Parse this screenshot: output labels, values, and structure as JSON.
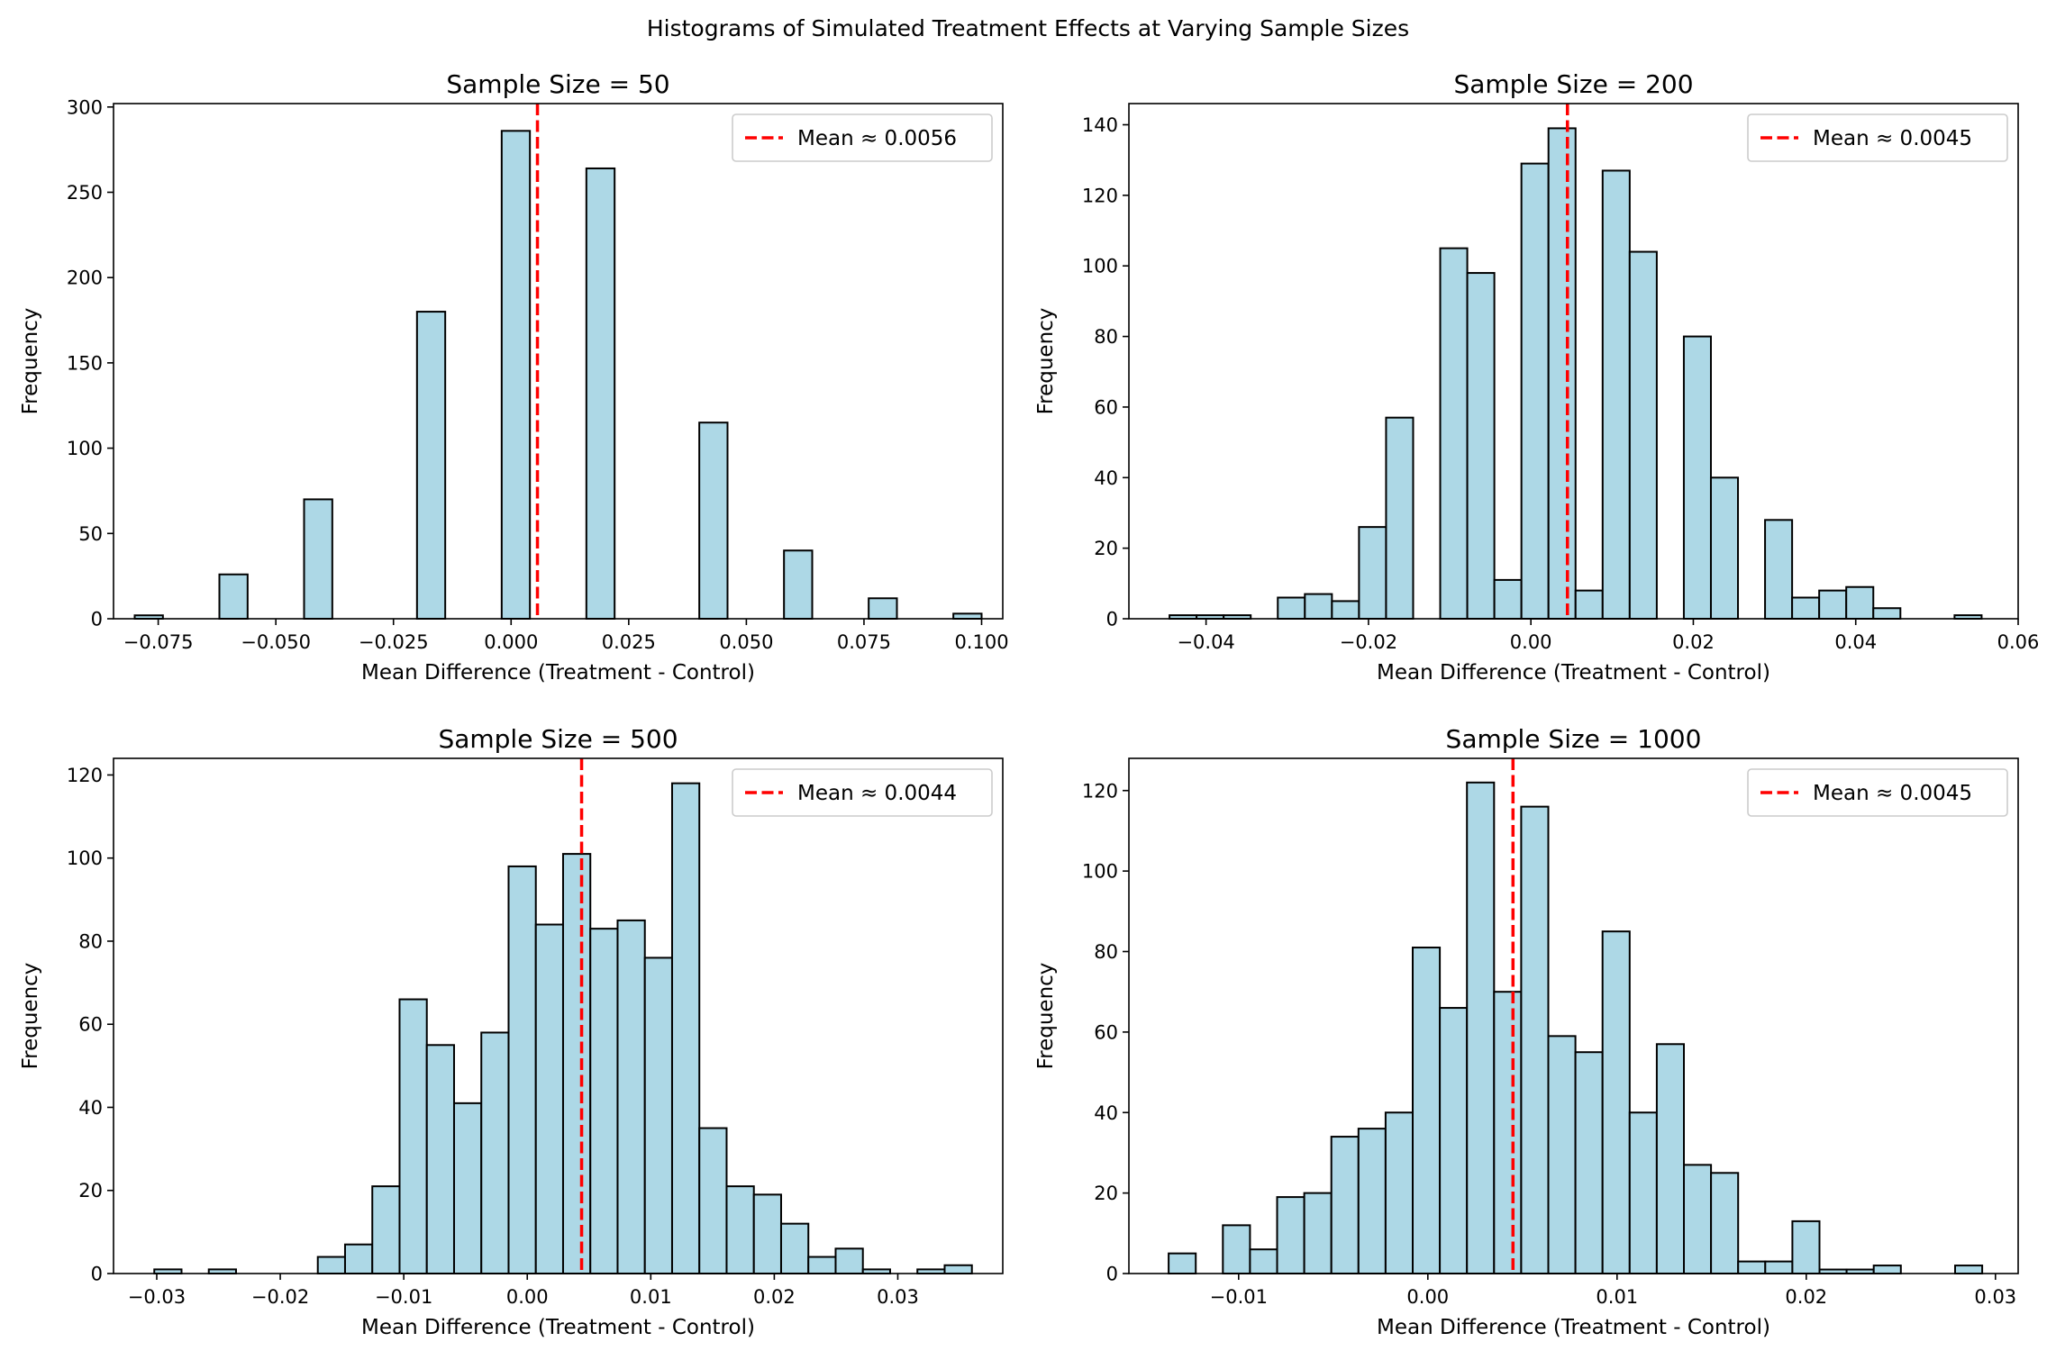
{
  "figure": {
    "title": "Histograms of Simulated Treatment Effects at Varying Sample Sizes",
    "bar_fill": "#add8e6",
    "bar_edge": "#000000",
    "mean_line_color": "#ff0000"
  },
  "chart_data": [
    {
      "type": "bar",
      "title": "Sample Size = 50",
      "xlabel": "Mean Difference (Treatment - Control)",
      "ylabel": "Frequency",
      "xlim": [
        -0.0845,
        0.1045
      ],
      "ylim": [
        0,
        302
      ],
      "xticks": [
        -0.075,
        -0.05,
        -0.025,
        0.0,
        0.025,
        0.05,
        0.075,
        0.1
      ],
      "xtick_labels": [
        "−0.075",
        "−0.050",
        "−0.025",
        "0.000",
        "0.025",
        "0.050",
        "0.075",
        "0.100"
      ],
      "yticks": [
        0,
        50,
        100,
        150,
        200,
        250,
        300
      ],
      "ytick_labels": [
        "0",
        "50",
        "100",
        "150",
        "200",
        "250",
        "300"
      ],
      "bin_start": -0.08,
      "bin_width": 0.006,
      "values": [
        2,
        0,
        0,
        26,
        0,
        0,
        70,
        0,
        0,
        0,
        180,
        0,
        0,
        286,
        0,
        0,
        264,
        0,
        0,
        0,
        115,
        0,
        0,
        40,
        0,
        0,
        12,
        0,
        0,
        3
      ],
      "mean": 0.0056,
      "legend_label": "Mean ≈ 0.0056",
      "legend_position": "upper right"
    },
    {
      "type": "bar",
      "title": "Sample Size = 200",
      "xlabel": "Mean Difference (Treatment - Control)",
      "ylabel": "Frequency",
      "xlim": [
        -0.0495,
        0.06
      ],
      "ylim": [
        0,
        146
      ],
      "xticks": [
        -0.04,
        -0.02,
        0.0,
        0.02,
        0.04,
        0.06
      ],
      "xtick_labels": [
        "−0.04",
        "−0.02",
        "0.00",
        "0.02",
        "0.04",
        "0.06"
      ],
      "yticks": [
        0,
        20,
        40,
        60,
        80,
        100,
        120,
        140
      ],
      "ytick_labels": [
        "0",
        "20",
        "40",
        "60",
        "80",
        "100",
        "120",
        "140"
      ],
      "bin_start": -0.0445,
      "bin_width": 0.0033333,
      "values": [
        1,
        1,
        1,
        0,
        6,
        7,
        5,
        26,
        57,
        0,
        105,
        98,
        11,
        129,
        139,
        8,
        127,
        104,
        0,
        80,
        40,
        0,
        28,
        6,
        8,
        9,
        3,
        0,
        0,
        1
      ],
      "mean": 0.0045,
      "legend_label": "Mean ≈ 0.0045",
      "legend_position": "upper right"
    },
    {
      "type": "bar",
      "title": "Sample Size = 500",
      "xlabel": "Mean Difference (Treatment - Control)",
      "ylabel": "Frequency",
      "xlim": [
        -0.0335,
        0.0385
      ],
      "ylim": [
        0,
        124
      ],
      "xticks": [
        -0.03,
        -0.02,
        -0.01,
        0.0,
        0.01,
        0.02,
        0.03
      ],
      "xtick_labels": [
        "−0.03",
        "−0.02",
        "−0.01",
        "0.00",
        "0.01",
        "0.02",
        "0.03"
      ],
      "yticks": [
        0,
        20,
        40,
        60,
        80,
        100,
        120
      ],
      "ytick_labels": [
        "0",
        "20",
        "40",
        "60",
        "80",
        "100",
        "120"
      ],
      "bin_start": -0.0302,
      "bin_width": 0.00220667,
      "values": [
        1,
        0,
        1,
        0,
        0,
        0,
        4,
        7,
        21,
        66,
        55,
        41,
        58,
        98,
        84,
        101,
        83,
        85,
        76,
        118,
        35,
        21,
        19,
        12,
        4,
        6,
        1,
        0,
        1,
        2
      ],
      "mean": 0.0044,
      "legend_label": "Mean ≈ 0.0044",
      "legend_position": "upper right"
    },
    {
      "type": "bar",
      "title": "Sample Size = 1000",
      "xlabel": "Mean Difference (Treatment - Control)",
      "ylabel": "Frequency",
      "xlim": [
        -0.0158,
        0.0312
      ],
      "ylim": [
        0,
        128
      ],
      "xticks": [
        -0.01,
        0.0,
        0.01,
        0.02,
        0.03
      ],
      "xtick_labels": [
        "−0.01",
        "0.00",
        "0.01",
        "0.02",
        "0.03"
      ],
      "yticks": [
        0,
        20,
        40,
        60,
        80,
        100,
        120
      ],
      "ytick_labels": [
        "0",
        "20",
        "40",
        "60",
        "80",
        "100",
        "120"
      ],
      "bin_start": -0.0137,
      "bin_width": 0.00143333,
      "values": [
        5,
        0,
        12,
        6,
        19,
        20,
        34,
        36,
        40,
        81,
        66,
        122,
        70,
        116,
        59,
        55,
        85,
        40,
        57,
        27,
        25,
        3,
        3,
        13,
        1,
        1,
        2,
        0,
        0,
        2
      ],
      "mean": 0.0045,
      "legend_label": "Mean ≈ 0.0045",
      "legend_position": "upper right"
    }
  ]
}
